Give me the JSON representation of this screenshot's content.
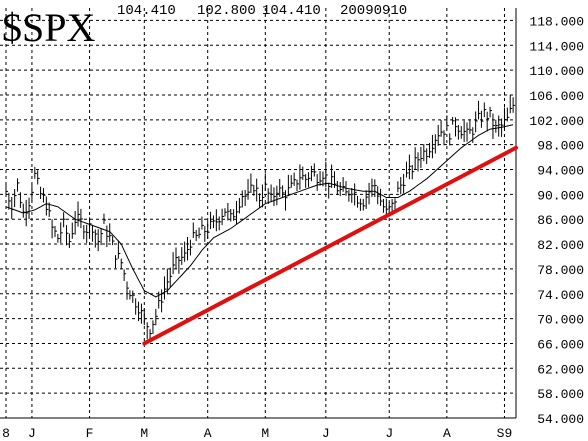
{
  "header": {
    "symbol": "$SPX",
    "close": "104.410",
    "low": "102.800",
    "last": "104.410",
    "date": "20090910"
  },
  "colors": {
    "grid": "#000000",
    "price": "#000000",
    "moving_average": "#000000",
    "trendline": "#e01010"
  },
  "chart_data": {
    "type": "line",
    "title": "$SPX",
    "ylim": [
      54,
      120
    ],
    "y_ticks": [
      "54.000",
      "58.000",
      "62.000",
      "66.000",
      "70.000",
      "74.000",
      "78.000",
      "82.000",
      "86.000",
      "90.000",
      "94.000",
      "98.000",
      "102.000",
      "106.000",
      "110.000",
      "114.000",
      "118.000"
    ],
    "x_ticks": [
      {
        "label": "8",
        "index": 0
      },
      {
        "label": "J",
        "index": 9
      },
      {
        "label": "F",
        "index": 29
      },
      {
        "label": "M",
        "index": 48
      },
      {
        "label": "A",
        "index": 70
      },
      {
        "label": "M",
        "index": 90
      },
      {
        "label": "J",
        "index": 111
      },
      {
        "label": "J",
        "index": 133
      },
      {
        "label": "A",
        "index": 153
      },
      {
        "label": "S9",
        "index": 173
      }
    ],
    "x_range": [
      0,
      177
    ],
    "grid": true,
    "series": [
      {
        "type": "price",
        "values_sampled_every": 1,
        "anchors": [
          [
            0,
            90.5
          ],
          [
            2,
            88.5
          ],
          [
            4,
            91.5
          ],
          [
            6,
            87.0
          ],
          [
            8,
            89.0
          ],
          [
            10,
            93.0
          ],
          [
            12,
            90.0
          ],
          [
            14,
            88.5
          ],
          [
            16,
            84.5
          ],
          [
            18,
            83.0
          ],
          [
            20,
            85.0
          ],
          [
            22,
            82.5
          ],
          [
            24,
            86.0
          ],
          [
            26,
            85.5
          ],
          [
            28,
            84.5
          ],
          [
            30,
            85.0
          ],
          [
            32,
            82.5
          ],
          [
            34,
            85.0
          ],
          [
            36,
            83.0
          ],
          [
            38,
            80.5
          ],
          [
            40,
            79.0
          ],
          [
            42,
            75.5
          ],
          [
            44,
            73.5
          ],
          [
            46,
            72.0
          ],
          [
            48,
            69.5
          ],
          [
            50,
            68.5
          ],
          [
            52,
            70.5
          ],
          [
            54,
            73.5
          ],
          [
            56,
            76.0
          ],
          [
            58,
            78.0
          ],
          [
            60,
            79.5
          ],
          [
            62,
            80.0
          ],
          [
            64,
            82.5
          ],
          [
            66,
            83.0
          ],
          [
            68,
            84.0
          ],
          [
            70,
            84.5
          ],
          [
            72,
            85.0
          ],
          [
            74,
            86.5
          ],
          [
            76,
            87.5
          ],
          [
            78,
            86.0
          ],
          [
            80,
            88.0
          ],
          [
            82,
            90.0
          ],
          [
            84,
            89.5
          ],
          [
            86,
            91.5
          ],
          [
            88,
            89.5
          ],
          [
            90,
            91.0
          ],
          [
            92,
            89.0
          ],
          [
            94,
            91.0
          ],
          [
            96,
            90.0
          ],
          [
            98,
            90.5
          ],
          [
            100,
            91.5
          ],
          [
            102,
            93.0
          ],
          [
            104,
            92.5
          ],
          [
            106,
            93.5
          ],
          [
            108,
            93.0
          ],
          [
            110,
            93.5
          ],
          [
            112,
            92.0
          ],
          [
            114,
            91.5
          ],
          [
            116,
            90.5
          ],
          [
            118,
            90.0
          ],
          [
            120,
            91.0
          ],
          [
            122,
            89.5
          ],
          [
            124,
            89.0
          ],
          [
            126,
            90.5
          ],
          [
            128,
            91.5
          ],
          [
            130,
            89.0
          ],
          [
            132,
            87.0
          ],
          [
            134,
            88.0
          ],
          [
            136,
            90.5
          ],
          [
            138,
            92.5
          ],
          [
            140,
            93.5
          ],
          [
            142,
            95.0
          ],
          [
            144,
            96.5
          ],
          [
            146,
            97.0
          ],
          [
            148,
            98.5
          ],
          [
            150,
            100.0
          ],
          [
            152,
            100.5
          ],
          [
            154,
            100.0
          ],
          [
            156,
            101.5
          ],
          [
            158,
            100.5
          ],
          [
            160,
            99.5
          ],
          [
            162,
            100.5
          ],
          [
            164,
            102.0
          ],
          [
            166,
            103.0
          ],
          [
            168,
            102.5
          ],
          [
            170,
            100.5
          ],
          [
            172,
            101.0
          ],
          [
            174,
            102.0
          ],
          [
            176,
            104.4
          ]
        ]
      },
      {
        "type": "moving_average",
        "anchors": [
          [
            0,
            88.0
          ],
          [
            6,
            87.0
          ],
          [
            10,
            87.5
          ],
          [
            14,
            88.5
          ],
          [
            18,
            88.0
          ],
          [
            24,
            86.0
          ],
          [
            30,
            85.0
          ],
          [
            36,
            84.0
          ],
          [
            40,
            82.0
          ],
          [
            44,
            78.0
          ],
          [
            48,
            74.5
          ],
          [
            52,
            73.5
          ],
          [
            56,
            74.5
          ],
          [
            60,
            76.5
          ],
          [
            64,
            78.5
          ],
          [
            68,
            81.0
          ],
          [
            72,
            83.0
          ],
          [
            78,
            84.5
          ],
          [
            84,
            86.5
          ],
          [
            90,
            88.5
          ],
          [
            96,
            89.5
          ],
          [
            102,
            90.5
          ],
          [
            108,
            91.5
          ],
          [
            112,
            91.8
          ],
          [
            118,
            91.0
          ],
          [
            124,
            90.5
          ],
          [
            128,
            90.5
          ],
          [
            132,
            89.5
          ],
          [
            136,
            89.5
          ],
          [
            140,
            90.5
          ],
          [
            146,
            92.5
          ],
          [
            152,
            95.0
          ],
          [
            158,
            97.5
          ],
          [
            164,
            99.5
          ],
          [
            168,
            100.5
          ],
          [
            172,
            100.8
          ],
          [
            176,
            101.2
          ]
        ]
      },
      {
        "type": "trendline",
        "anchors": [
          [
            48,
            66.0
          ],
          [
            177,
            97.5
          ]
        ]
      }
    ]
  }
}
